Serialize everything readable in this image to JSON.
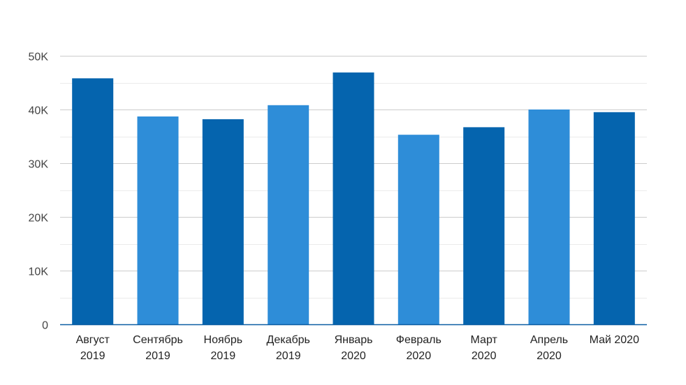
{
  "chart_data": {
    "type": "bar",
    "categories": [
      [
        "Август",
        "2019"
      ],
      [
        "Сентябрь",
        "2019"
      ],
      [
        "Ноябрь",
        "2019"
      ],
      [
        "Декабрь",
        "2019"
      ],
      [
        "Январь",
        "2020"
      ],
      [
        "Февраль",
        "2020"
      ],
      [
        "Март",
        "2020"
      ],
      [
        "Апрель",
        "2020"
      ],
      [
        "Май 2020"
      ]
    ],
    "values": [
      45800,
      38700,
      38200,
      40800,
      46900,
      35300,
      36700,
      40000,
      39500
    ],
    "bar_colors": [
      "#0564ae",
      "#2e8dd8",
      "#0564ae",
      "#2e8dd8",
      "#0564ae",
      "#2e8dd8",
      "#0564ae",
      "#2e8dd8",
      "#0564ae"
    ],
    "ylim": [
      0,
      50000
    ],
    "y_ticks": [
      0,
      10000,
      20000,
      30000,
      40000,
      50000
    ],
    "y_tick_labels": [
      "0",
      "10K",
      "20K",
      "30K",
      "40K",
      "50K"
    ],
    "title": "",
    "xlabel": "",
    "ylabel": "",
    "grid": true,
    "legend": "none",
    "colors": {
      "major_grid": "#cccccc",
      "minor_grid": "#ebebeb",
      "baseline": "#0b5da3"
    }
  }
}
